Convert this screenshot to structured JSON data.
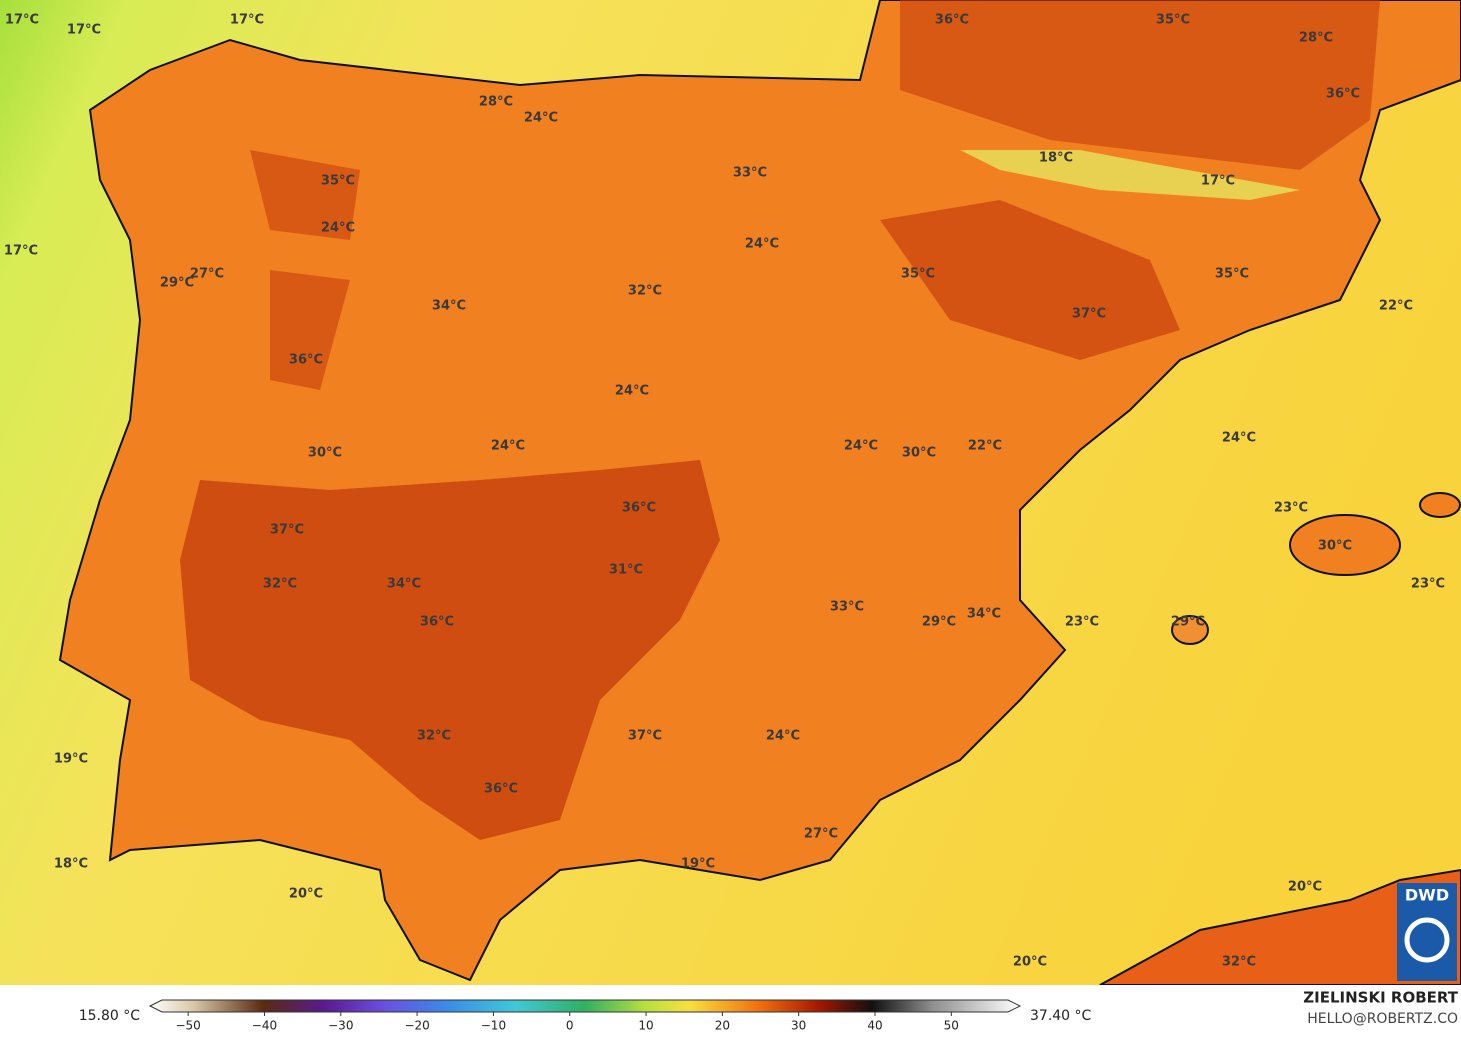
{
  "map": {
    "labels": [
      "17°C",
      "17°C",
      "17°C",
      "36°C",
      "35°C",
      "28°C",
      "36°C",
      "28°C",
      "24°C",
      "18°C",
      "33°C",
      "17°C",
      "35°C",
      "24°C",
      "24°C",
      "17°C",
      "27°C",
      "29°C",
      "35°C",
      "35°C",
      "32°C",
      "34°C",
      "22°C",
      "37°C",
      "36°C",
      "24°C",
      "24°C",
      "24°C",
      "24°C",
      "30°C",
      "22°C",
      "30°C",
      "23°C",
      "36°C",
      "37°C",
      "30°C",
      "31°C",
      "32°C",
      "34°C",
      "23°C",
      "33°C",
      "34°C",
      "36°C",
      "29°C",
      "23°C",
      "29°C",
      "37°C",
      "32°C",
      "24°C",
      "19°C",
      "36°C",
      "27°C",
      "19°C",
      "18°C",
      "20°C",
      "20°C",
      "20°C",
      "32°C"
    ]
  },
  "legend": {
    "min_label": "15.80 °C",
    "max_label": "37.40 °C",
    "lim": [
      -55,
      59
    ],
    "ticks": [
      {
        "value": -50,
        "label": "−50"
      },
      {
        "value": -40,
        "label": "−40"
      },
      {
        "value": -30,
        "label": "−30"
      },
      {
        "value": -20,
        "label": "−20"
      },
      {
        "value": -10,
        "label": "−10"
      },
      0,
      10,
      20,
      30,
      40,
      50
    ]
  },
  "credit": {
    "name": "ZIELINSKI ROBERT",
    "email": "HELLO@ROBERTZ.CO"
  },
  "logo": {
    "text": "DWD"
  }
}
